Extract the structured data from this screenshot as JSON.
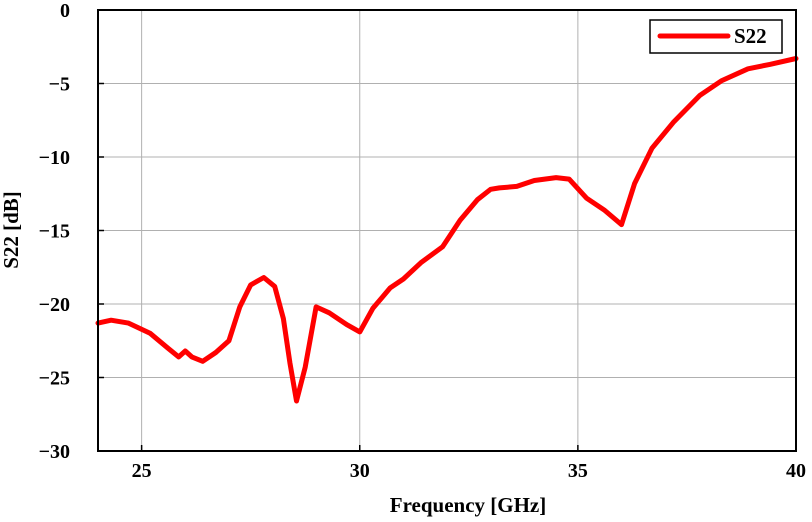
{
  "chart_data": {
    "type": "line",
    "xlabel": "Frequency [GHz]",
    "ylabel": "S22 [dB]",
    "xlim": [
      24,
      40
    ],
    "ylim": [
      -30,
      0
    ],
    "xticks": [
      25,
      30,
      35,
      40
    ],
    "yticks": [
      0,
      -5,
      -10,
      -15,
      -20,
      -25,
      -30
    ],
    "xtick_labels": [
      "25",
      "30",
      "35",
      "40"
    ],
    "ytick_labels": [
      "0",
      "−5",
      "−10",
      "−15",
      "−20",
      "−25",
      "−30"
    ],
    "grid": true,
    "legend_position": "top-right",
    "series": [
      {
        "name": "S22",
        "color": "#ff0000",
        "x": [
          24.0,
          24.3,
          24.7,
          25.2,
          25.6,
          25.85,
          26.0,
          26.15,
          26.4,
          26.7,
          27.0,
          27.25,
          27.5,
          27.8,
          28.05,
          28.25,
          28.4,
          28.55,
          28.75,
          29.0,
          29.3,
          29.7,
          30.0,
          30.3,
          30.7,
          31.0,
          31.4,
          31.9,
          32.3,
          32.7,
          33.0,
          33.2,
          33.6,
          34.0,
          34.5,
          34.8,
          35.2,
          35.6,
          36.0,
          36.3,
          36.7,
          37.2,
          37.8,
          38.3,
          38.9,
          39.4,
          40.0
        ],
        "values": [
          -21.3,
          -21.1,
          -21.3,
          -22.0,
          -23.0,
          -23.6,
          -23.2,
          -23.6,
          -23.9,
          -23.3,
          -22.5,
          -20.2,
          -18.7,
          -18.2,
          -18.8,
          -21.0,
          -24.0,
          -26.6,
          -24.3,
          -20.2,
          -20.6,
          -21.4,
          -21.9,
          -20.3,
          -18.9,
          -18.3,
          -17.2,
          -16.1,
          -14.3,
          -12.9,
          -12.2,
          -12.1,
          -12.0,
          -11.6,
          -11.4,
          -11.5,
          -12.8,
          -13.6,
          -14.6,
          -11.8,
          -9.4,
          -7.6,
          -5.8,
          -4.8,
          -4.0,
          -3.7,
          -3.3
        ]
      }
    ]
  }
}
